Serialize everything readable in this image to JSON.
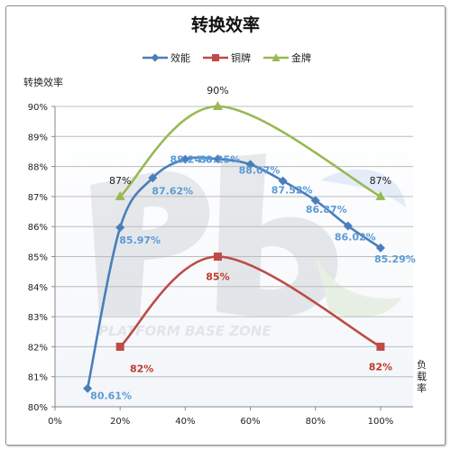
{
  "chart_data": {
    "type": "line",
    "title": "转换效率",
    "ylabel": "转换效率",
    "xlabel": "负载率",
    "xlim": [
      0,
      110
    ],
    "ylim": [
      80,
      90
    ],
    "x_ticks": [
      "0%",
      "20%",
      "40%",
      "60%",
      "80%",
      "100%"
    ],
    "x_tick_values": [
      0,
      20,
      40,
      60,
      80,
      100
    ],
    "y_ticks": [
      "80%",
      "81%",
      "82%",
      "83%",
      "84%",
      "85%",
      "86%",
      "87%",
      "88%",
      "89%",
      "90%"
    ],
    "y_tick_values": [
      80,
      81,
      82,
      83,
      84,
      85,
      86,
      87,
      88,
      89,
      90
    ],
    "grid": "horizontal",
    "legend": "top",
    "series": [
      {
        "name": "效能",
        "color": "#4a7ebb",
        "marker": "diamond",
        "x": [
          10,
          20,
          30,
          40,
          50,
          60,
          70,
          80,
          90,
          100
        ],
        "values": [
          80.61,
          85.97,
          87.62,
          88.24,
          88.25,
          88.07,
          87.52,
          86.87,
          86.02,
          85.29
        ],
        "labels": [
          "80.61%",
          "85.97%",
          "87.62%",
          "88.24%",
          "88.25%",
          "88.07%",
          "87.52%",
          "86.87%",
          "86.02%",
          "85.29%"
        ]
      },
      {
        "name": "铜牌",
        "color": "#be4b48",
        "marker": "square",
        "x": [
          20,
          50,
          100
        ],
        "values": [
          82,
          85,
          82
        ],
        "labels": [
          "82%",
          "85%",
          "82%"
        ]
      },
      {
        "name": "金牌",
        "color": "#98b954",
        "marker": "triangle",
        "x": [
          20,
          50,
          100
        ],
        "values": [
          87,
          90,
          87
        ],
        "labels": [
          "87%",
          "90%",
          "87%"
        ]
      }
    ],
    "watermark": "PLATFORM BASE ZONE"
  }
}
